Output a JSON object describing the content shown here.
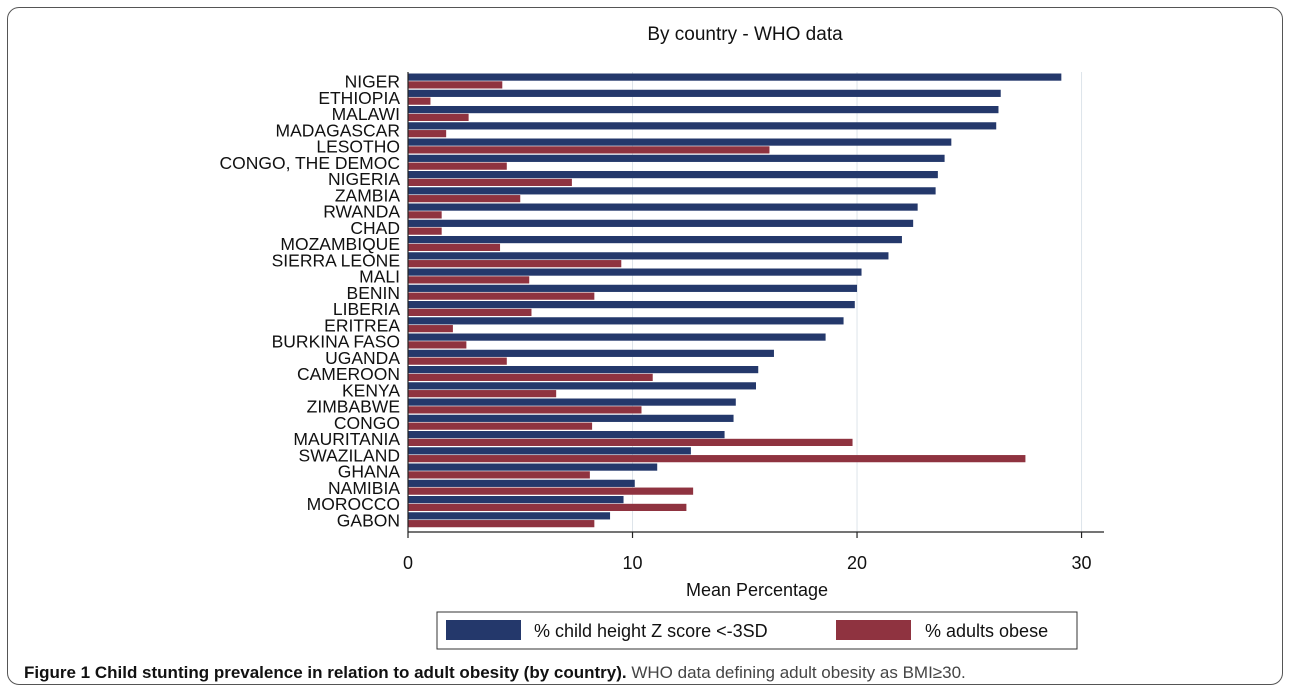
{
  "chart_data": {
    "type": "bar",
    "orientation": "horizontal",
    "title": "By country - WHO data",
    "xlabel": "Mean Percentage",
    "xlim": [
      0,
      31
    ],
    "xticks": [
      0,
      10,
      20,
      30
    ],
    "grid": true,
    "legend_position": "bottom",
    "categories": [
      "NIGER",
      "ETHIOPIA",
      "MALAWI",
      "MADAGASCAR",
      "LESOTHO",
      "CONGO, THE DEMOC",
      "NIGERIA",
      "ZAMBIA",
      "RWANDA",
      "CHAD",
      "MOZAMBIQUE",
      "SIERRA LEONE",
      "MALI",
      "BENIN",
      "LIBERIA",
      "ERITREA",
      "BURKINA FASO",
      "UGANDA",
      "CAMEROON",
      "KENYA",
      "ZIMBABWE",
      "CONGO",
      "MAURITANIA",
      "SWAZILAND",
      "GHANA",
      "NAMIBIA",
      "MOROCCO",
      "GABON"
    ],
    "series": [
      {
        "name": "% child height Z score <-3SD",
        "color": "#24386b",
        "values": [
          29.1,
          26.4,
          26.3,
          26.2,
          24.2,
          23.9,
          23.6,
          23.5,
          22.7,
          22.5,
          22.0,
          21.4,
          20.2,
          20.0,
          19.9,
          19.4,
          18.6,
          16.3,
          15.6,
          15.5,
          14.6,
          14.5,
          14.1,
          12.6,
          11.1,
          10.1,
          9.6,
          9.0
        ]
      },
      {
        "name": "% adults obese",
        "color": "#8f3340",
        "values": [
          4.2,
          1.0,
          2.7,
          1.7,
          16.1,
          4.4,
          7.3,
          5.0,
          1.5,
          1.5,
          4.1,
          9.5,
          5.4,
          8.3,
          5.5,
          2.0,
          2.6,
          4.4,
          10.9,
          6.6,
          10.4,
          8.2,
          19.8,
          27.5,
          8.1,
          12.7,
          12.4,
          8.3
        ]
      }
    ]
  },
  "caption": {
    "bold": "Figure 1 Child stunting prevalence in relation to adult obesity (by country).",
    "rest": "WHO data defining adult obesity as BMI≥30."
  }
}
